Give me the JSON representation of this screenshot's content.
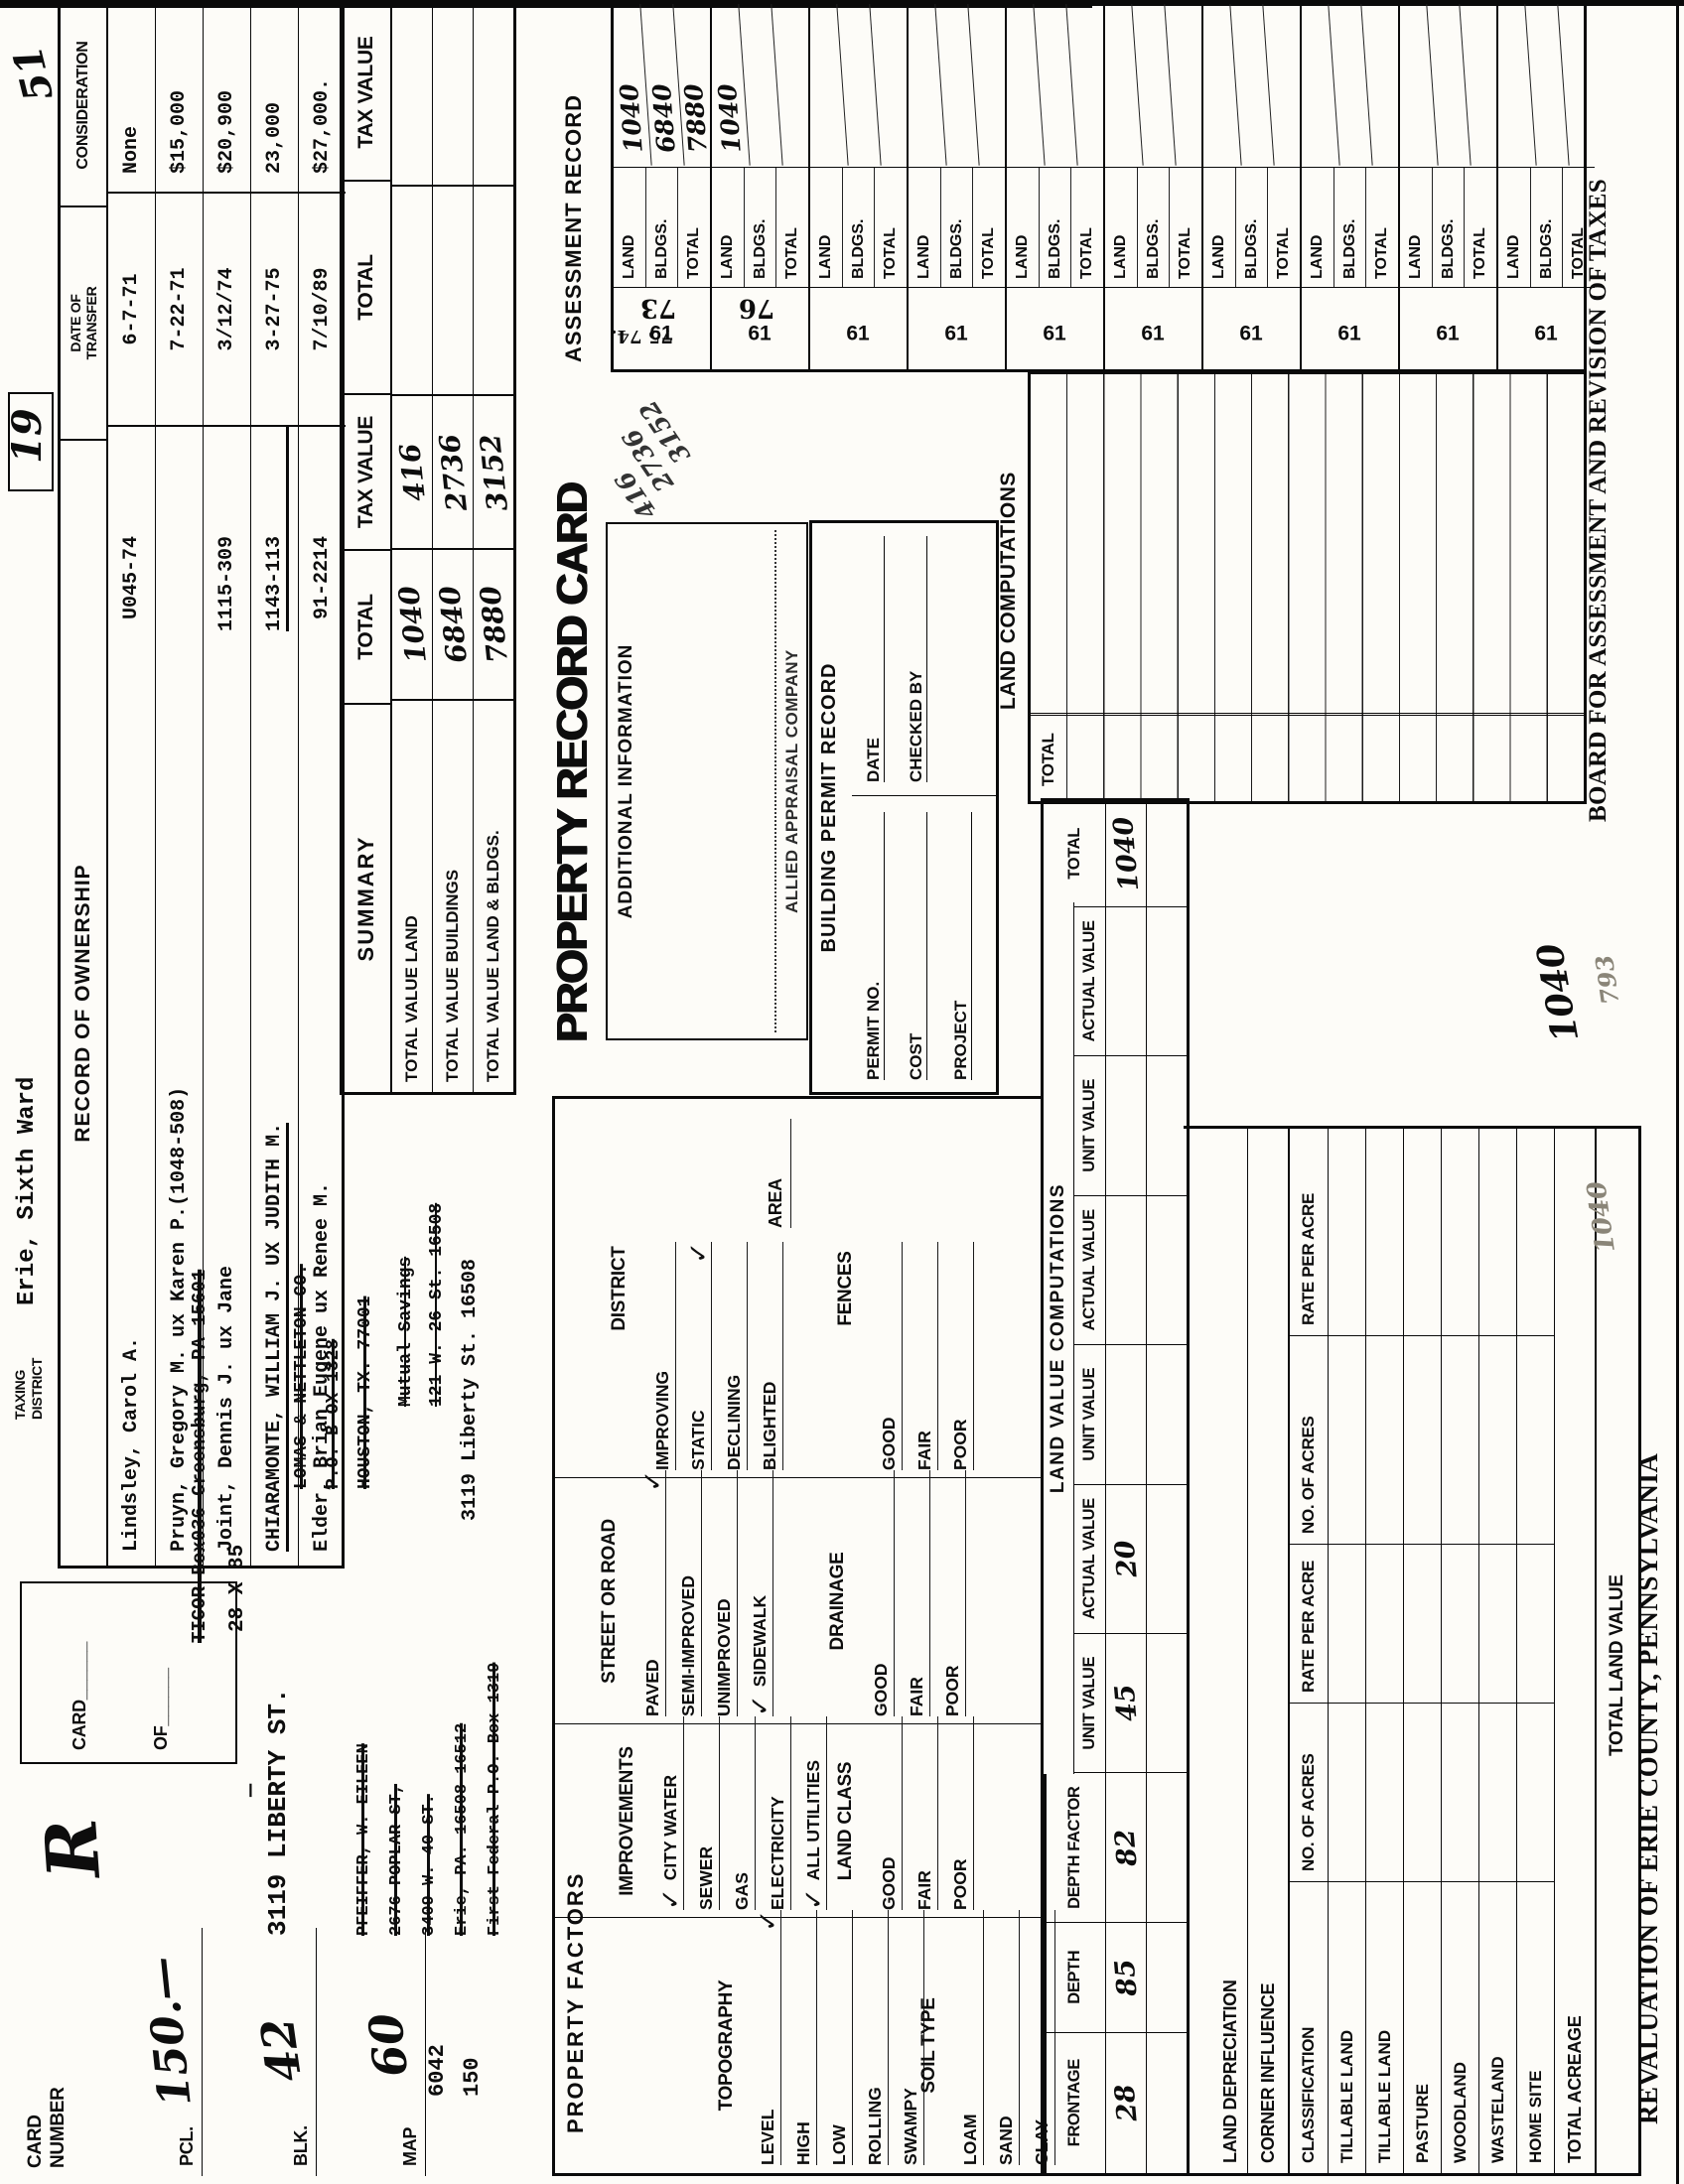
{
  "corner": {
    "mark_tr": "51",
    "boxed_note": "19"
  },
  "header": {
    "card_number_label_1": "CARD",
    "card_number_label_2": "NUMBER",
    "card_number_value": "R",
    "card_label": "CARD______",
    "of_label": "OF______",
    "pcl": {
      "label": "PCL.",
      "value": "150.—"
    },
    "blk": {
      "label": "BLK.",
      "value": "42"
    },
    "map": {
      "label": "MAP",
      "value": "60"
    },
    "parcel_num_1": "6042",
    "parcel_num_2": "150",
    "taxing_district_label_1": "TAXING",
    "taxing_district_label_2": "DISTRICT",
    "taxing_district_value": "Erie, Sixth Ward"
  },
  "ownership": {
    "header": "RECORD  OF  OWNERSHIP",
    "date_header_1": "DATE OF",
    "date_header_2": "TRANSFER",
    "consideration_header": "CONSIDERATION",
    "rows": [
      {
        "name": "Lindsley, Carol A.",
        "ref": "U045-74",
        "date": "6-7-71",
        "consideration": "None",
        "cls": ""
      },
      {
        "name": "Pruyn, Gregory M. ux Karen P.(1048-508)",
        "ref": "",
        "date": "7-22-71",
        "consideration": "$15,000",
        "cls": ""
      },
      {
        "name": "Joint, Dennis J. ux Jane",
        "ref": "1115-309",
        "date": "3/12/74",
        "consideration": "$20,900",
        "cls": ""
      },
      {
        "name": "CHIARAMONTE, WILLIAM J. UX JUDITH M.",
        "ref": "1143-113",
        "date": "3-27-75",
        "consideration": "23,000",
        "cls": "strong"
      },
      {
        "name": "Elder, Brian Eugene ux Renee M.",
        "ref": "91-2214",
        "date": "7/10/89",
        "consideration": "$27,000.",
        "cls": ""
      }
    ]
  },
  "addresses": {
    "ticor": "TICOR Box036 Greensburg, PA 15601",
    "dimensions": "28 X 85",
    "dash": "—",
    "property_street": "3119 LIBERTY ST.",
    "pfeiffer_lines": [
      {
        "label": "PFEIFFER, W. EILEEN",
        "cls": "struck"
      },
      {
        "label": "2676 POPLAR ST,",
        "cls": "struck"
      },
      {
        "label": "3409 W. 40 ST.",
        "cls": "struck"
      },
      {
        "label": "Erie, PA. 16508 16512",
        "cls": "struck"
      },
      {
        "label": "First Federal P.O. Box 1319",
        "cls": "struck"
      }
    ],
    "lomas_lines": [
      {
        "label": "LOMAS & NETTLETON CO.",
        "cls": "struck"
      },
      {
        "label": "P.O. B OX 1328",
        "cls": "struck"
      },
      {
        "label": "HOUSTON, TX. 77001",
        "cls": "struck"
      }
    ],
    "mutual_lines": [
      {
        "label": "Mutual Savings",
        "cls": "struckthin"
      },
      {
        "label": "121 W. 26 St.  16508",
        "cls": "struckthin"
      }
    ],
    "current_address": "3119 Liberty St.  16508"
  },
  "summary": {
    "title": "SUMMARY",
    "col_total_1": "TOTAL",
    "col_tax_1": "TAX VALUE",
    "col_total_2": "TOTAL",
    "col_tax_2": "TAX VALUE",
    "rows": [
      {
        "label": "TOTAL VALUE LAND",
        "total": "1040",
        "tax": "416"
      },
      {
        "label": "TOTAL VALUE BUILDINGS",
        "total": "6840",
        "tax": "2736"
      },
      {
        "label": "TOTAL VALUE LAND & BLDGS.",
        "total": "7880",
        "tax": "3152"
      }
    ]
  },
  "title": "PROPERTY RECORD CARD",
  "additional_info": {
    "header": "ADDITIONAL  INFORMATION",
    "company": "ALLIED APPRAISAL COMPANY"
  },
  "diagonal_note": {
    "line1": "416",
    "line2": "2736",
    "line3": "3152"
  },
  "permits": {
    "header": "BUILDING  PERMIT  RECORD",
    "permit_no": "PERMIT NO.",
    "cost": "COST",
    "project": "PROJECT",
    "date": "DATE",
    "checked_by": "CHECKED BY"
  },
  "land_computations": {
    "header": "LAND COMPUTATIONS",
    "total_label": "TOTAL"
  },
  "assessment": {
    "header": "ASSESSMENT   RECORD",
    "year_print": "61",
    "row_labels": [
      "LAND",
      "BLDGS.",
      "TOTAL"
    ],
    "bands": [
      {
        "year_hw": "73",
        "notes": "75   74.",
        "land": "1040",
        "bldgs": "6840",
        "total": "7880"
      },
      {
        "year_hw": "76",
        "notes": "",
        "land": "1040",
        "bldgs": "",
        "total": ""
      },
      {
        "year_hw": "",
        "notes": "",
        "land": "",
        "bldgs": "",
        "total": ""
      },
      {
        "year_hw": "",
        "notes": "",
        "land": "",
        "bldgs": "",
        "total": ""
      },
      {
        "year_hw": "",
        "notes": "",
        "land": "",
        "bldgs": "",
        "total": ""
      },
      {
        "year_hw": "",
        "notes": "",
        "land": "",
        "bldgs": "",
        "total": ""
      },
      {
        "year_hw": "",
        "notes": "",
        "land": "",
        "bldgs": "",
        "total": ""
      },
      {
        "year_hw": "",
        "notes": "",
        "land": "",
        "bldgs": "",
        "total": ""
      },
      {
        "year_hw": "",
        "notes": "",
        "land": "",
        "bldgs": "",
        "total": ""
      },
      {
        "year_hw": "",
        "notes": "",
        "land": "",
        "bldgs": "",
        "total": ""
      }
    ]
  },
  "factors": {
    "title": "PROPERTY  FACTORS",
    "topography": {
      "name": "TOPOGRAPHY",
      "items": [
        {
          "label": "LEVEL",
          "check": true,
          "cls": ""
        },
        {
          "label": "HIGH",
          "check": false,
          "cls": ""
        },
        {
          "label": "LOW",
          "check": false,
          "cls": ""
        },
        {
          "label": "ROLLING",
          "check": false,
          "cls": ""
        },
        {
          "label": "SWAMPY",
          "check": false,
          "cls": ""
        }
      ]
    },
    "soil": {
      "name": "SOIL TYPE",
      "items": [
        {
          "label": "LOAM",
          "check": false,
          "cls": ""
        },
        {
          "label": "SAND",
          "check": false,
          "cls": ""
        },
        {
          "label": "CLAY",
          "check": false,
          "cls": ""
        }
      ]
    },
    "improvements": {
      "name": "IMPROVEMENTS",
      "items": [
        {
          "label": "CITY WATER",
          "check": true,
          "cls": "ckl"
        },
        {
          "label": "SEWER",
          "check": false,
          "cls": ""
        },
        {
          "label": "GAS",
          "check": false,
          "cls": ""
        },
        {
          "label": "ELECTRICITY",
          "check": false,
          "cls": ""
        },
        {
          "label": "ALL UTILITIES",
          "check": true,
          "cls": "ckl"
        }
      ]
    },
    "land_class": {
      "name": "LAND CLASS",
      "items": [
        {
          "label": "GOOD",
          "check": false,
          "cls": ""
        },
        {
          "label": "FAIR",
          "check": false,
          "cls": ""
        },
        {
          "label": "POOR",
          "check": false,
          "cls": ""
        }
      ]
    },
    "street": {
      "name": "STREET OR ROAD",
      "items": [
        {
          "label": "PAVED",
          "check": true,
          "cls": ""
        },
        {
          "label": "SEMI-IMPROVED",
          "check": false,
          "cls": ""
        },
        {
          "label": "UNIMPROVED",
          "check": false,
          "cls": ""
        },
        {
          "label": "SIDEWALK",
          "check": true,
          "cls": "ckl"
        }
      ]
    },
    "drainage": {
      "name": "DRAINAGE",
      "items": [
        {
          "label": "GOOD",
          "check": false,
          "cls": ""
        },
        {
          "label": "FAIR",
          "check": false,
          "cls": ""
        },
        {
          "label": "POOR",
          "check": false,
          "cls": ""
        }
      ]
    },
    "district": {
      "name": "DISTRICT",
      "items": [
        {
          "label": "IMPROVING",
          "check": false,
          "cls": ""
        },
        {
          "label": "STATIC",
          "check": true,
          "cls": ""
        },
        {
          "label": "DECLINING",
          "check": false,
          "cls": ""
        },
        {
          "label": "BLIGHTED",
          "check": false,
          "cls": ""
        }
      ]
    },
    "area_label": "AREA",
    "fences": {
      "name": "FENCES",
      "items": [
        {
          "label": "GOOD",
          "check": false,
          "cls": ""
        },
        {
          "label": "FAIR",
          "check": false,
          "cls": ""
        },
        {
          "label": "POOR",
          "check": false,
          "cls": ""
        }
      ]
    }
  },
  "lvc": {
    "title": "LAND  VALUE  COMPUTATIONS",
    "columns": [
      {
        "h": "FRONTAGE",
        "v": "28",
        "w": 142,
        "cls": ""
      },
      {
        "h": "DEPTH",
        "v": "85",
        "w": 110,
        "cls": ""
      },
      {
        "h": "DEPTH FACTOR",
        "v": "82",
        "w": 150,
        "cls": ""
      },
      {
        "h": "UNIT VALUE",
        "v": "45",
        "w": 140,
        "cls": "short"
      },
      {
        "h": "ACTUAL VALUE",
        "v": "20",
        "w": 150,
        "cls": "short"
      },
      {
        "h": "UNIT VALUE",
        "v": "",
        "w": 140,
        "cls": "short"
      },
      {
        "h": "ACTUAL VALUE",
        "v": "",
        "w": 150,
        "cls": "short"
      },
      {
        "h": "UNIT VALUE",
        "v": "",
        "w": 140,
        "cls": "short"
      },
      {
        "h": "ACTUAL VALUE",
        "v": "",
        "w": 150,
        "cls": "short"
      },
      {
        "h": "TOTAL",
        "v": "1040",
        "w": 106,
        "cls": ""
      }
    ]
  },
  "classification": {
    "land_depreciation": "LAND DEPRECIATION",
    "corner_influence": "CORNER INFLUENCE",
    "headers": [
      "CLASSIFICATION",
      "NO. OF ACRES",
      "RATE PER ACRE",
      "NO. OF ACRES",
      "RATE PER ACRE"
    ],
    "rows": [
      {
        "label": "TILLABLE LAND"
      },
      {
        "label": "TILLABLE LAND"
      },
      {
        "label": "PASTURE"
      },
      {
        "label": "WOODLAND"
      },
      {
        "label": "WASTELAND"
      },
      {
        "label": "HOME SITE"
      }
    ],
    "total_acreage": "TOTAL ACREAGE",
    "total_land_value": "TOTAL LAND VALUE",
    "total_land_value_hw": "1040",
    "faint_note_1": "1040",
    "faint_note_2": "793"
  },
  "footer": {
    "left": "REVALUATION OF ERIE COUNTY, PENNSYLVANIA",
    "right": "BOARD FOR ASSESSMENT AND REVISION OF TAXES"
  },
  "colors": {
    "ink": "#0d0d0d",
    "paper": "#fdfcf8",
    "faint": "#8a8578"
  }
}
